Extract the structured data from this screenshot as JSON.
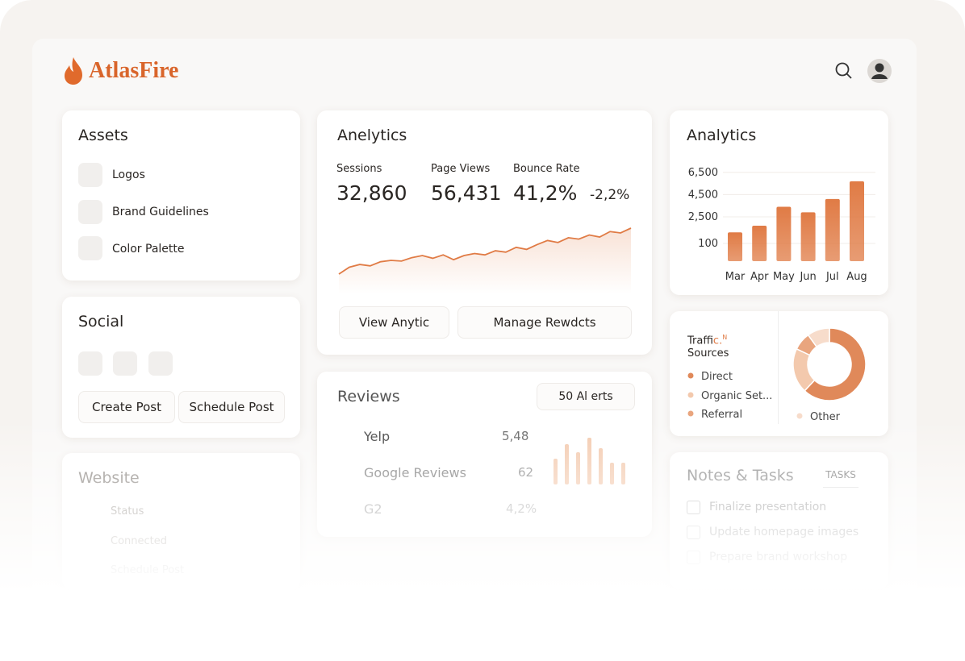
{
  "header": {
    "brand": "AtlasFire"
  },
  "assets": {
    "title": "Assets",
    "items": [
      "Logos",
      "Brand Guidelines",
      "Color Palette"
    ]
  },
  "social": {
    "title": "Social",
    "buttons": [
      "Create Post",
      "Schedule Post"
    ]
  },
  "website": {
    "title": "Website",
    "items": [
      "Status",
      "Connected",
      "Schedule Post"
    ]
  },
  "analytics": {
    "title": "Anelytics",
    "metrics": [
      {
        "label": "Sessions",
        "value": "32,860"
      },
      {
        "label": "Page Views",
        "value": "56,431"
      },
      {
        "label": "Bounce Rate",
        "value": "41,2%"
      }
    ],
    "change": "-2,2%",
    "sparkline": {
      "color": "#e07b45",
      "values": [
        4,
        14,
        18,
        16,
        22,
        24,
        23,
        28,
        31,
        27,
        32,
        25,
        31,
        34,
        32,
        38,
        36,
        43,
        40,
        47,
        53,
        50,
        57,
        55,
        61,
        58,
        66,
        64,
        71
      ]
    },
    "buttons": [
      "View Anytic",
      "Manage Rewdcts"
    ]
  },
  "reviews": {
    "title": "Reviews",
    "alerts": "50 Al erts",
    "rows": [
      {
        "name": "Yelp",
        "value": "5,48"
      },
      {
        "name": "Google Reviews",
        "value": "62"
      },
      {
        "name": "G2",
        "value": "4,2%"
      }
    ],
    "bars": [
      32,
      50,
      40,
      58,
      45,
      27,
      27
    ],
    "bar_color": "#f3c9ad"
  },
  "chart_data": {
    "type": "bar",
    "title": "Analytics",
    "categories": [
      "Mar",
      "Apr",
      "May",
      "Jun",
      "Jul",
      "Aug"
    ],
    "values": [
      1100,
      1700,
      3400,
      2900,
      4100,
      5700
    ],
    "color": "#e07b45",
    "ylim": [
      -1500,
      7000
    ],
    "yticks": [
      {
        "value": 6500,
        "label": "6,500"
      },
      {
        "value": 4500,
        "label": "4,500"
      },
      {
        "value": 2500,
        "label": "2,500"
      },
      100
    ],
    "grid": true
  },
  "traffic": {
    "title_parts": [
      "Traf",
      "fic.",
      "N",
      "Sources"
    ],
    "donut": {
      "type": "pie",
      "categories": [
        "Direct",
        "Organic Set...",
        "Referral",
        "Other"
      ],
      "values": [
        62,
        20,
        8,
        10
      ],
      "colors": [
        "#e0895a",
        "#f3c9ad",
        "#e9a57e",
        "#f7dccb"
      ]
    }
  },
  "notes": {
    "title": "Notes & Tasks",
    "tab": "TASKS",
    "tasks": [
      "Finalize presentation",
      "Update homepage images",
      "Prepare brand workshop"
    ]
  }
}
